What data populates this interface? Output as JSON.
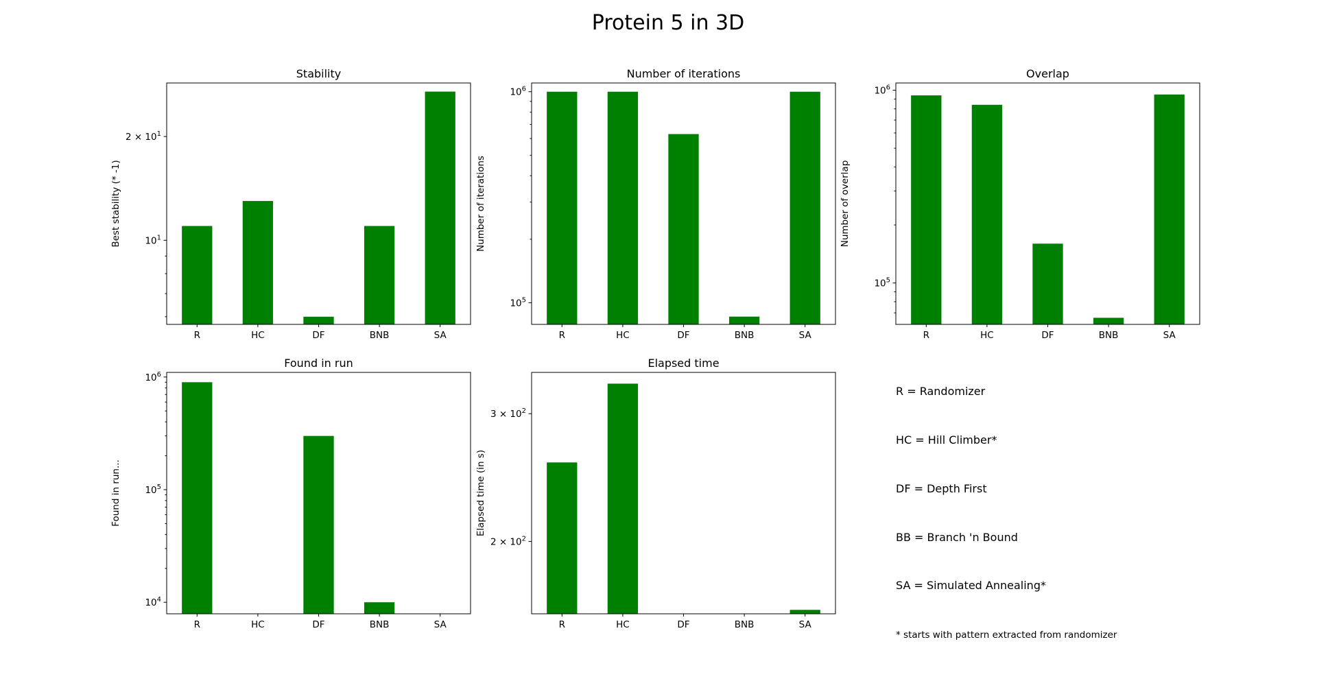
{
  "figure_title": "Protein 5 in 3D",
  "bar_color": "#008000",
  "legend_lines": [
    "R = Randomizer",
    "HC = Hill Climber*",
    "DF = Depth First",
    "BB = Branch 'n Bound",
    "SA = Simulated Annealing*"
  ],
  "footnote": "* starts with pattern extracted from randomizer",
  "chart_data": [
    {
      "type": "bar",
      "title": "Stability",
      "ylabel": "Best stability (* -1)",
      "yscale": "log",
      "categories": [
        "R",
        "HC",
        "DF",
        "BNB",
        "SA"
      ],
      "values": [
        11,
        13,
        6,
        11,
        27
      ],
      "ylim": [
        5.7,
        28.6
      ],
      "yticks": [
        {
          "value": 10,
          "base": "10",
          "exp": "1"
        },
        {
          "value": 20,
          "base": "2 × 10",
          "exp": "1"
        }
      ],
      "minor_ticks": [
        6,
        7,
        8,
        9
      ]
    },
    {
      "type": "bar",
      "title": "Number of iterations",
      "ylabel": "Number of iterations",
      "yscale": "log",
      "categories": [
        "R",
        "HC",
        "DF",
        "BNB",
        "SA"
      ],
      "values": [
        1000000,
        1000000,
        630000,
        86000,
        1000000
      ],
      "ylim": [
        79000,
        1100000
      ],
      "yticks": [
        {
          "value": 100000,
          "base": "10",
          "exp": "5"
        },
        {
          "value": 1000000,
          "base": "10",
          "exp": "6"
        }
      ],
      "minor_ticks": [
        200000,
        300000,
        400000,
        500000,
        600000,
        700000,
        800000,
        900000
      ]
    },
    {
      "type": "bar",
      "title": "Overlap",
      "ylabel": "Number  of overlap",
      "yscale": "log",
      "categories": [
        "R",
        "HC",
        "DF",
        "BNB",
        "SA"
      ],
      "values": [
        940000,
        840000,
        160000,
        66000,
        950000
      ],
      "ylim": [
        61000,
        1090000
      ],
      "yticks": [
        {
          "value": 100000,
          "base": "10",
          "exp": "5"
        },
        {
          "value": 1000000,
          "base": "10",
          "exp": "6"
        }
      ],
      "minor_ticks": [
        70000,
        80000,
        90000,
        200000,
        300000,
        400000,
        500000,
        600000,
        700000,
        800000,
        900000
      ]
    },
    {
      "type": "bar",
      "title": "Found in run",
      "ylabel": "Found in run...",
      "yscale": "log",
      "categories": [
        "R",
        "HC",
        "DF",
        "BNB",
        "SA"
      ],
      "values": [
        900000,
        0,
        300000,
        10000,
        0
      ],
      "ylim": [
        7900,
        1100000
      ],
      "yticks": [
        {
          "value": 10000,
          "base": "10",
          "exp": "4"
        },
        {
          "value": 100000,
          "base": "10",
          "exp": "5"
        },
        {
          "value": 1000000,
          "base": "10",
          "exp": "6"
        }
      ],
      "minor_ticks": [
        20000,
        30000,
        40000,
        50000,
        60000,
        70000,
        80000,
        90000,
        200000,
        300000,
        400000,
        500000,
        600000,
        700000,
        800000,
        900000
      ]
    },
    {
      "type": "bar",
      "title": "Elapsed time",
      "ylabel": "Elapsed time (in s)",
      "yscale": "log",
      "categories": [
        "R",
        "HC",
        "DF",
        "BNB",
        "SA"
      ],
      "values": [
        257,
        330,
        0,
        0,
        161
      ],
      "ylim": [
        159,
        342
      ],
      "yticks": [
        {
          "value": 200,
          "base": "2 × 10",
          "exp": "2"
        },
        {
          "value": 300,
          "base": "3 × 10",
          "exp": "2"
        }
      ],
      "minor_ticks": []
    }
  ]
}
